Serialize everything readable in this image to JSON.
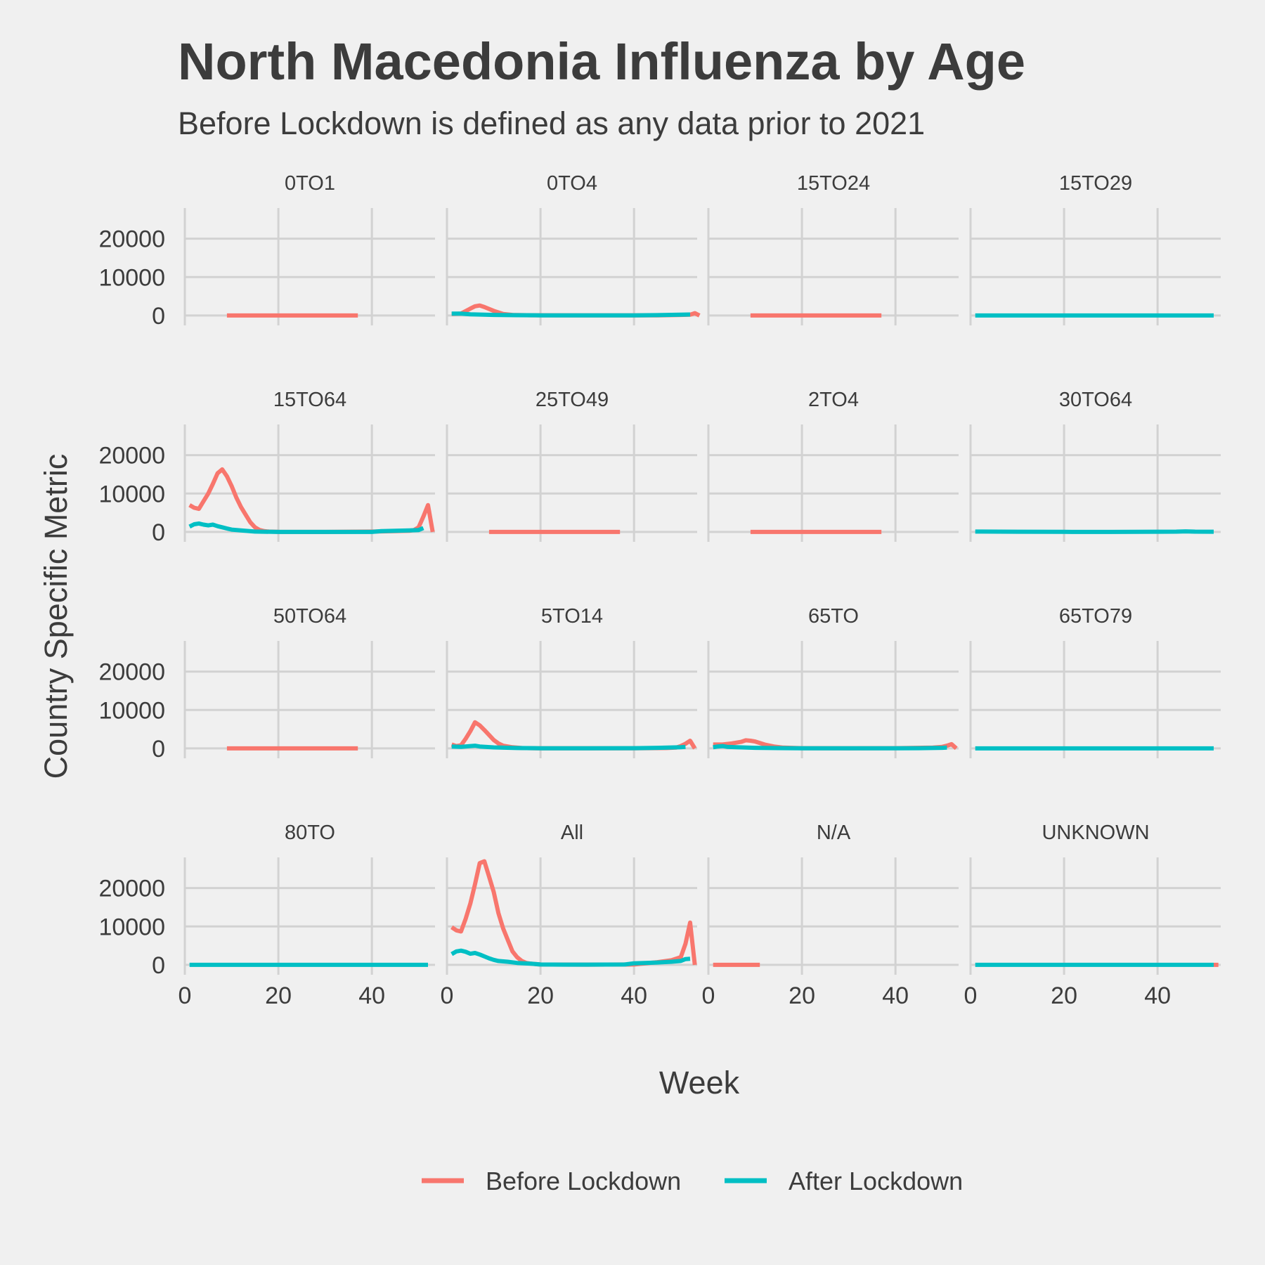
{
  "chart_data": {
    "type": "line",
    "title": "North Macedonia Influenza by Age",
    "subtitle": "Before Lockdown is defined as any data prior to 2021",
    "xlabel": "Week",
    "ylabel": "Country Specific Metric",
    "xlim": [
      0,
      53.5
    ],
    "ylim": [
      -1300,
      28000
    ],
    "x_ticks": [
      0,
      20,
      40
    ],
    "y_ticks": [
      0,
      10000,
      20000
    ],
    "grid": true,
    "legend_position": "bottom",
    "colors": {
      "before": "#f8766d",
      "after": "#00bfc4"
    },
    "legend": [
      "Before Lockdown",
      "After Lockdown"
    ],
    "panels": [
      {
        "label": "0TO1",
        "before": [
          [
            9,
            0
          ],
          [
            37,
            0
          ]
        ],
        "after": []
      },
      {
        "label": "0TO4",
        "before": [
          [
            1,
            400
          ],
          [
            3,
            500
          ],
          [
            5,
            1800
          ],
          [
            6,
            2400
          ],
          [
            7,
            2600
          ],
          [
            8,
            2200
          ],
          [
            10,
            1200
          ],
          [
            12,
            400
          ],
          [
            14,
            150
          ],
          [
            18,
            50
          ],
          [
            30,
            20
          ],
          [
            45,
            40
          ],
          [
            50,
            150
          ],
          [
            52,
            200
          ],
          [
            53,
            600
          ],
          [
            54,
            0
          ]
        ],
        "after": [
          [
            1,
            500
          ],
          [
            3,
            500
          ],
          [
            5,
            300
          ],
          [
            10,
            150
          ],
          [
            15,
            80
          ],
          [
            20,
            30
          ],
          [
            30,
            10
          ],
          [
            40,
            40
          ],
          [
            45,
            100
          ],
          [
            50,
            200
          ],
          [
            52,
            250
          ]
        ]
      },
      {
        "label": "15TO24",
        "before": [
          [
            9,
            0
          ],
          [
            37,
            0
          ]
        ],
        "after": []
      },
      {
        "label": "15TO29",
        "before": [],
        "after": [
          [
            1,
            0
          ],
          [
            52,
            0
          ]
        ]
      },
      {
        "label": "15TO64",
        "before": [
          [
            1,
            7000
          ],
          [
            2,
            6300
          ],
          [
            3,
            6000
          ],
          [
            4,
            8000
          ],
          [
            5,
            10000
          ],
          [
            6,
            12500
          ],
          [
            7,
            15300
          ],
          [
            8,
            16300
          ],
          [
            9,
            14500
          ],
          [
            10,
            12000
          ],
          [
            11,
            9000
          ],
          [
            12,
            6500
          ],
          [
            13,
            4500
          ],
          [
            14,
            2500
          ],
          [
            15,
            1200
          ],
          [
            16,
            500
          ],
          [
            17,
            200
          ],
          [
            18,
            100
          ],
          [
            20,
            20
          ],
          [
            30,
            0
          ],
          [
            40,
            100
          ],
          [
            45,
            200
          ],
          [
            48,
            300
          ],
          [
            49,
            500
          ],
          [
            50,
            1200
          ],
          [
            51,
            4000
          ],
          [
            52,
            7000
          ],
          [
            53,
            0
          ]
        ],
        "after": [
          [
            1,
            1400
          ],
          [
            2,
            2000
          ],
          [
            3,
            2200
          ],
          [
            4,
            1900
          ],
          [
            5,
            1700
          ],
          [
            6,
            1900
          ],
          [
            7,
            1500
          ],
          [
            8,
            1200
          ],
          [
            9,
            900
          ],
          [
            10,
            600
          ],
          [
            12,
            400
          ],
          [
            15,
            100
          ],
          [
            20,
            0
          ],
          [
            40,
            0
          ],
          [
            42,
            200
          ],
          [
            45,
            300
          ],
          [
            48,
            400
          ],
          [
            50,
            500
          ],
          [
            51,
            1000
          ]
        ]
      },
      {
        "label": "25TO49",
        "before": [
          [
            9,
            0
          ],
          [
            37,
            0
          ]
        ],
        "after": []
      },
      {
        "label": "2TO4",
        "before": [
          [
            9,
            0
          ],
          [
            37,
            0
          ]
        ],
        "after": []
      },
      {
        "label": "30TO64",
        "before": [],
        "after": [
          [
            1,
            100
          ],
          [
            10,
            50
          ],
          [
            20,
            20
          ],
          [
            30,
            0
          ],
          [
            40,
            50
          ],
          [
            44,
            80
          ],
          [
            46,
            150
          ],
          [
            48,
            80
          ],
          [
            52,
            50
          ]
        ]
      },
      {
        "label": "50TO64",
        "before": [
          [
            9,
            0
          ],
          [
            37,
            0
          ]
        ],
        "after": []
      },
      {
        "label": "5TO14",
        "before": [
          [
            1,
            1000
          ],
          [
            2,
            600
          ],
          [
            3,
            800
          ],
          [
            4,
            2500
          ],
          [
            5,
            4500
          ],
          [
            6,
            6800
          ],
          [
            7,
            6000
          ],
          [
            8,
            4800
          ],
          [
            9,
            3500
          ],
          [
            10,
            2200
          ],
          [
            11,
            1300
          ],
          [
            12,
            700
          ],
          [
            14,
            300
          ],
          [
            16,
            100
          ],
          [
            20,
            20
          ],
          [
            40,
            20
          ],
          [
            47,
            100
          ],
          [
            49,
            200
          ],
          [
            50,
            600
          ],
          [
            51,
            1200
          ],
          [
            52,
            2000
          ],
          [
            53,
            0
          ]
        ],
        "after": [
          [
            1,
            500
          ],
          [
            3,
            400
          ],
          [
            5,
            600
          ],
          [
            6,
            700
          ],
          [
            7,
            500
          ],
          [
            10,
            250
          ],
          [
            15,
            100
          ],
          [
            20,
            30
          ],
          [
            30,
            10
          ],
          [
            40,
            50
          ],
          [
            45,
            150
          ],
          [
            50,
            300
          ],
          [
            51,
            400
          ]
        ]
      },
      {
        "label": "65TO",
        "before": [
          [
            1,
            1000
          ],
          [
            3,
            1000
          ],
          [
            5,
            1300
          ],
          [
            7,
            1700
          ],
          [
            8,
            2100
          ],
          [
            9,
            2000
          ],
          [
            10,
            1800
          ],
          [
            12,
            1000
          ],
          [
            14,
            500
          ],
          [
            16,
            200
          ],
          [
            20,
            50
          ],
          [
            30,
            20
          ],
          [
            40,
            50
          ],
          [
            48,
            200
          ],
          [
            50,
            400
          ],
          [
            51,
            700
          ],
          [
            52,
            1100
          ],
          [
            53,
            0
          ]
        ],
        "after": [
          [
            1,
            300
          ],
          [
            2,
            500
          ],
          [
            3,
            600
          ],
          [
            4,
            400
          ],
          [
            6,
            300
          ],
          [
            10,
            150
          ],
          [
            15,
            80
          ],
          [
            20,
            30
          ],
          [
            30,
            10
          ],
          [
            40,
            30
          ],
          [
            45,
            50
          ],
          [
            50,
            150
          ],
          [
            51,
            200
          ]
        ]
      },
      {
        "label": "65TO79",
        "before": [],
        "after": [
          [
            1,
            0
          ],
          [
            52,
            0
          ]
        ]
      },
      {
        "label": "80TO",
        "before": [],
        "after": [
          [
            1,
            0
          ],
          [
            52,
            0
          ]
        ]
      },
      {
        "label": "All",
        "before": [
          [
            1,
            9800
          ],
          [
            2,
            9000
          ],
          [
            3,
            8700
          ],
          [
            4,
            12000
          ],
          [
            5,
            16000
          ],
          [
            6,
            21000
          ],
          [
            7,
            26500
          ],
          [
            8,
            27000
          ],
          [
            9,
            23000
          ],
          [
            10,
            19000
          ],
          [
            11,
            13500
          ],
          [
            12,
            9500
          ],
          [
            13,
            6500
          ],
          [
            14,
            3500
          ],
          [
            15,
            2000
          ],
          [
            16,
            1000
          ],
          [
            17,
            500
          ],
          [
            18,
            300
          ],
          [
            20,
            100
          ],
          [
            30,
            50
          ],
          [
            40,
            100
          ],
          [
            45,
            700
          ],
          [
            48,
            1200
          ],
          [
            50,
            2000
          ],
          [
            51,
            5500
          ],
          [
            52,
            11000
          ],
          [
            53,
            0
          ]
        ],
        "after": [
          [
            1,
            2800
          ],
          [
            2,
            3500
          ],
          [
            3,
            3700
          ],
          [
            4,
            3400
          ],
          [
            5,
            2900
          ],
          [
            6,
            3100
          ],
          [
            7,
            2700
          ],
          [
            8,
            2200
          ],
          [
            9,
            1700
          ],
          [
            10,
            1300
          ],
          [
            11,
            1000
          ],
          [
            13,
            800
          ],
          [
            15,
            500
          ],
          [
            18,
            300
          ],
          [
            20,
            100
          ],
          [
            25,
            50
          ],
          [
            30,
            50
          ],
          [
            38,
            100
          ],
          [
            40,
            400
          ],
          [
            45,
            600
          ],
          [
            48,
            800
          ],
          [
            50,
            1000
          ],
          [
            51,
            1500
          ],
          [
            52,
            1600
          ]
        ]
      },
      {
        "label": "N/A",
        "before": [
          [
            1,
            0
          ],
          [
            11,
            0
          ]
        ],
        "after": []
      },
      {
        "label": "UNKNOWN",
        "before": [
          [
            52,
            0
          ],
          [
            53,
            0
          ]
        ],
        "after": [
          [
            1,
            0
          ],
          [
            52,
            0
          ]
        ]
      }
    ]
  }
}
